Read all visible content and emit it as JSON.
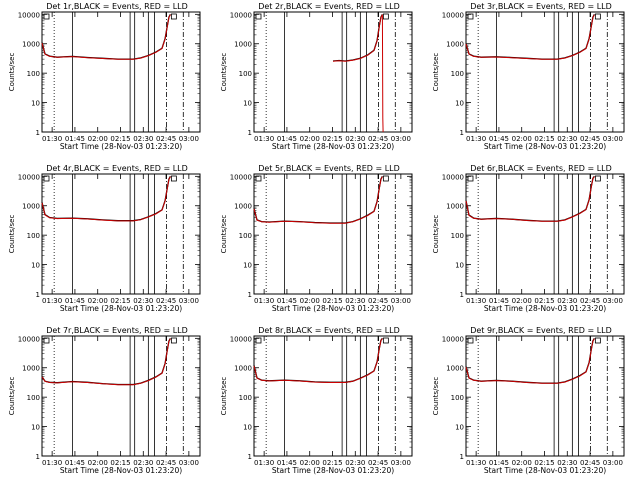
{
  "colors": {
    "events": "#000000",
    "lld": "#cc0000",
    "axis": "#000000"
  },
  "chart_data": [
    {
      "type": "line",
      "title": "Det 1r,BLACK = Events, RED = LLD",
      "xlabel": "Start Time (28-Nov-03 01:23:20)",
      "ylabel": "Counts/sec",
      "xticks": [
        "01:30",
        "01:45",
        "02:00",
        "02:15",
        "02:30",
        "02:45",
        "03:00"
      ],
      "yticks": [
        "1",
        "10",
        "100",
        "1000",
        "10000"
      ],
      "xlim_minutes": [
        0,
        104
      ],
      "ylim": [
        1,
        12000
      ],
      "yscale": "log",
      "grid": false,
      "dotted_lines_minutes": [
        8
      ],
      "solid_lines_minutes": [
        20,
        58,
        61,
        70,
        74
      ],
      "dashdot_lines_minutes": [
        82,
        93
      ],
      "series": [
        {
          "key": "events",
          "x_minutes": [
            0,
            2,
            5,
            10,
            20,
            30,
            40,
            50,
            60,
            65,
            70,
            75,
            79,
            81,
            82.5,
            83.5,
            84.5
          ],
          "values": [
            1100,
            450,
            380,
            350,
            370,
            340,
            320,
            300,
            300,
            330,
            400,
            520,
            700,
            1500,
            4000,
            8000,
            10000
          ]
        },
        {
          "key": "lld",
          "x_minutes": [
            0,
            2,
            5,
            10,
            20,
            30,
            40,
            50,
            60,
            65,
            70,
            75,
            79,
            81,
            82.5,
            83.5,
            84.5
          ],
          "values": [
            1050,
            440,
            370,
            345,
            365,
            335,
            315,
            295,
            295,
            325,
            395,
            510,
            690,
            1450,
            3900,
            7800,
            9800
          ]
        }
      ]
    },
    {
      "type": "line",
      "title": "Det 2r,BLACK = Events, RED = LLD",
      "xlabel": "Start Time (28-Nov-03 01:23:20)",
      "ylabel": "Counts/sec",
      "xticks": [
        "01:30",
        "01:45",
        "02:00",
        "02:15",
        "02:30",
        "02:45",
        "03:00"
      ],
      "yticks": [
        "1",
        "10",
        "100",
        "1000",
        "10000"
      ],
      "xlim_minutes": [
        0,
        104
      ],
      "ylim": [
        1,
        12000
      ],
      "yscale": "log",
      "grid": false,
      "dotted_lines_minutes": [
        8
      ],
      "solid_lines_minutes": [
        20,
        58,
        61,
        70,
        74
      ],
      "dashdot_lines_minutes": [
        82,
        93
      ],
      "series": [
        {
          "key": "events",
          "x_minutes": [
            52,
            56,
            60,
            65,
            70,
            75,
            79,
            81,
            82.5,
            83.5,
            84.5
          ],
          "values": [
            260,
            270,
            260,
            280,
            320,
            420,
            600,
            1300,
            4000,
            8000,
            10000
          ]
        },
        {
          "key": "lld",
          "x_minutes": [
            52,
            56,
            60,
            65,
            70,
            75,
            79,
            81,
            82.5,
            83.5,
            84.5,
            84.8,
            85
          ],
          "values": [
            255,
            265,
            255,
            275,
            315,
            410,
            590,
            1250,
            3900,
            7800,
            9800,
            3,
            1
          ]
        }
      ]
    },
    {
      "type": "line",
      "title": "Det 3r,BLACK = Events, RED = LLD",
      "xlabel": "Start Time (28-Nov-03 01:23:20)",
      "ylabel": "Counts/sec",
      "xticks": [
        "01:30",
        "01:45",
        "02:00",
        "02:15",
        "02:30",
        "02:45",
        "03:00"
      ],
      "yticks": [
        "1",
        "10",
        "100",
        "1000",
        "10000"
      ],
      "xlim_minutes": [
        0,
        104
      ],
      "ylim": [
        1,
        12000
      ],
      "yscale": "log",
      "grid": false,
      "dotted_lines_minutes": [
        8
      ],
      "solid_lines_minutes": [
        20,
        58,
        61,
        70,
        74
      ],
      "dashdot_lines_minutes": [
        82,
        93
      ],
      "series": [
        {
          "key": "events",
          "x_minutes": [
            0,
            2,
            5,
            10,
            20,
            30,
            40,
            50,
            60,
            65,
            70,
            75,
            79,
            81,
            82.5,
            83.5,
            84.5
          ],
          "values": [
            1000,
            450,
            380,
            350,
            360,
            340,
            320,
            300,
            300,
            330,
            400,
            520,
            700,
            1500,
            4000,
            8000,
            10000
          ]
        },
        {
          "key": "lld",
          "x_minutes": [
            0,
            2,
            5,
            10,
            20,
            30,
            40,
            50,
            60,
            65,
            70,
            75,
            79,
            81,
            82.5,
            83.5,
            84.5
          ],
          "values": [
            980,
            440,
            370,
            345,
            355,
            335,
            315,
            295,
            295,
            325,
            395,
            510,
            690,
            1450,
            3900,
            7800,
            9800
          ]
        }
      ]
    },
    {
      "type": "line",
      "title": "Det 4r,BLACK = Events, RED = LLD",
      "xlabel": "Start Time (28-Nov-03 01:23:20)",
      "ylabel": "Counts/sec",
      "xticks": [
        "01:30",
        "01:45",
        "02:00",
        "02:15",
        "02:30",
        "02:45",
        "03:00"
      ],
      "yticks": [
        "1",
        "10",
        "100",
        "1000",
        "10000"
      ],
      "xlim_minutes": [
        0,
        104
      ],
      "ylim": [
        1,
        12000
      ],
      "yscale": "log",
      "grid": false,
      "dotted_lines_minutes": [
        8
      ],
      "solid_lines_minutes": [
        20,
        58,
        61,
        70,
        74
      ],
      "dashdot_lines_minutes": [
        82,
        93
      ],
      "series": [
        {
          "key": "events",
          "x_minutes": [
            0,
            2,
            5,
            10,
            20,
            30,
            40,
            50,
            60,
            65,
            70,
            75,
            79,
            81,
            82.5,
            83.5,
            84.5
          ],
          "values": [
            1300,
            500,
            400,
            370,
            380,
            360,
            330,
            310,
            310,
            340,
            420,
            540,
            720,
            1500,
            4000,
            8000,
            10000
          ]
        },
        {
          "key": "lld",
          "x_minutes": [
            0,
            2,
            5,
            10,
            20,
            30,
            40,
            50,
            60,
            65,
            70,
            75,
            79,
            81,
            82.5,
            83.5,
            84.5
          ],
          "values": [
            1250,
            490,
            390,
            365,
            375,
            355,
            325,
            305,
            305,
            335,
            415,
            530,
            710,
            1450,
            3900,
            7800,
            9800
          ]
        }
      ]
    },
    {
      "type": "line",
      "title": "Det 5r,BLACK = Events, RED = LLD",
      "xlabel": "Start Time (28-Nov-03 01:23:20)",
      "ylabel": "Counts/sec",
      "xticks": [
        "01:30",
        "01:45",
        "02:00",
        "02:15",
        "02:30",
        "02:45",
        "03:00"
      ],
      "yticks": [
        "1",
        "10",
        "100",
        "1000",
        "10000"
      ],
      "xlim_minutes": [
        0,
        104
      ],
      "ylim": [
        1,
        12000
      ],
      "yscale": "log",
      "grid": false,
      "dotted_lines_minutes": [
        8
      ],
      "solid_lines_minutes": [
        20,
        58,
        61,
        70,
        74
      ],
      "dashdot_lines_minutes": [
        82,
        93
      ],
      "series": [
        {
          "key": "events",
          "x_minutes": [
            0,
            2,
            5,
            10,
            20,
            30,
            40,
            50,
            60,
            65,
            70,
            75,
            79,
            81,
            82.5,
            83.5,
            84.5
          ],
          "values": [
            800,
            330,
            290,
            280,
            300,
            290,
            270,
            260,
            260,
            290,
            360,
            480,
            650,
            1400,
            4000,
            8000,
            10000
          ]
        },
        {
          "key": "lld",
          "x_minutes": [
            0,
            2,
            5,
            10,
            20,
            30,
            40,
            50,
            60,
            65,
            70,
            75,
            79,
            81,
            82.5,
            83.5,
            84.5
          ],
          "values": [
            780,
            325,
            285,
            275,
            295,
            285,
            265,
            255,
            255,
            285,
            355,
            470,
            640,
            1350,
            3900,
            7800,
            9800
          ]
        }
      ]
    },
    {
      "type": "line",
      "title": "Det 6r,BLACK = Events, RED = LLD",
      "xlabel": "Start Time (28-Nov-03 01:23:20)",
      "ylabel": "Counts/sec",
      "xticks": [
        "01:30",
        "01:45",
        "02:00",
        "02:15",
        "02:30",
        "02:45",
        "03:00"
      ],
      "yticks": [
        "1",
        "10",
        "100",
        "1000",
        "10000"
      ],
      "xlim_minutes": [
        0,
        104
      ],
      "ylim": [
        1,
        12000
      ],
      "yscale": "log",
      "grid": false,
      "dotted_lines_minutes": [
        8
      ],
      "solid_lines_minutes": [
        20,
        58,
        61,
        70,
        74
      ],
      "dashdot_lines_minutes": [
        82,
        93
      ],
      "series": [
        {
          "key": "events",
          "x_minutes": [
            0,
            2,
            5,
            10,
            20,
            30,
            40,
            50,
            60,
            65,
            70,
            75,
            79,
            81,
            82.5,
            83.5,
            84.5
          ],
          "values": [
            1500,
            480,
            380,
            350,
            370,
            350,
            320,
            300,
            300,
            330,
            420,
            560,
            750,
            1600,
            4500,
            8500,
            10000
          ]
        },
        {
          "key": "lld",
          "x_minutes": [
            0,
            2,
            5,
            10,
            20,
            30,
            40,
            50,
            60,
            65,
            70,
            75,
            79,
            81,
            82.5,
            83.5,
            84.5
          ],
          "values": [
            1450,
            470,
            375,
            345,
            365,
            345,
            315,
            295,
            295,
            325,
            415,
            550,
            740,
            1550,
            4400,
            8300,
            9800
          ]
        }
      ]
    },
    {
      "type": "line",
      "title": "Det 7r,BLACK = Events, RED = LLD",
      "xlabel": "Start Time (28-Nov-03 01:23:20)",
      "ylabel": "Counts/sec",
      "xticks": [
        "01:30",
        "01:45",
        "02:00",
        "02:15",
        "02:30",
        "02:45",
        "03:00"
      ],
      "yticks": [
        "1",
        "10",
        "100",
        "1000",
        "10000"
      ],
      "xlim_minutes": [
        0,
        104
      ],
      "ylim": [
        1,
        12000
      ],
      "yscale": "log",
      "grid": false,
      "dotted_lines_minutes": [
        8
      ],
      "solid_lines_minutes": [
        20,
        58,
        61,
        70,
        74
      ],
      "dashdot_lines_minutes": [
        82,
        93
      ],
      "series": [
        {
          "key": "events",
          "x_minutes": [
            0,
            2,
            5,
            10,
            20,
            30,
            40,
            50,
            60,
            65,
            70,
            75,
            79,
            81,
            82.5,
            83.5,
            84.5
          ],
          "values": [
            500,
            350,
            320,
            310,
            340,
            320,
            290,
            270,
            270,
            300,
            370,
            490,
            660,
            1400,
            4000,
            8000,
            10000
          ]
        },
        {
          "key": "lld",
          "x_minutes": [
            0,
            2,
            5,
            10,
            20,
            30,
            40,
            50,
            60,
            65,
            70,
            75,
            79,
            81,
            82.5,
            83.5,
            84.5
          ],
          "values": [
            490,
            345,
            315,
            305,
            335,
            315,
            285,
            265,
            265,
            295,
            365,
            480,
            650,
            1350,
            3900,
            7800,
            9800
          ]
        }
      ]
    },
    {
      "type": "line",
      "title": "Det 8r,BLACK = Events, RED = LLD",
      "xlabel": "Start Time (28-Nov-03 01:23:20)",
      "ylabel": "Counts/sec",
      "xticks": [
        "01:30",
        "01:45",
        "02:00",
        "02:15",
        "02:30",
        "02:45",
        "03:00"
      ],
      "yticks": [
        "1",
        "10",
        "100",
        "1000",
        "10000"
      ],
      "xlim_minutes": [
        0,
        104
      ],
      "ylim": [
        1,
        12000
      ],
      "yscale": "log",
      "grid": false,
      "dotted_lines_minutes": [
        8
      ],
      "solid_lines_minutes": [
        20,
        58,
        61,
        70,
        74
      ],
      "dashdot_lines_minutes": [
        82,
        93
      ],
      "series": [
        {
          "key": "events",
          "x_minutes": [
            0,
            2,
            5,
            10,
            20,
            30,
            40,
            50,
            60,
            65,
            70,
            75,
            79,
            81,
            82.5,
            83.5,
            84.5
          ],
          "values": [
            1200,
            450,
            380,
            360,
            380,
            360,
            330,
            320,
            320,
            350,
            440,
            580,
            780,
            1600,
            4500,
            8500,
            10000
          ]
        },
        {
          "key": "lld",
          "x_minutes": [
            0,
            2,
            5,
            10,
            20,
            30,
            40,
            50,
            60,
            65,
            70,
            75,
            79,
            81,
            82.5,
            83.5,
            84.5
          ],
          "values": [
            1150,
            440,
            375,
            355,
            375,
            355,
            325,
            315,
            315,
            345,
            435,
            570,
            770,
            1550,
            4400,
            8300,
            9800
          ]
        }
      ]
    },
    {
      "type": "line",
      "title": "Det 9r,BLACK = Events, RED = LLD",
      "xlabel": "Start Time (28-Nov-03 01:23:20)",
      "ylabel": "Counts/sec",
      "xticks": [
        "01:30",
        "01:45",
        "02:00",
        "02:15",
        "02:30",
        "02:45",
        "03:00"
      ],
      "yticks": [
        "1",
        "10",
        "100",
        "1000",
        "10000"
      ],
      "xlim_minutes": [
        0,
        104
      ],
      "ylim": [
        1,
        12000
      ],
      "yscale": "log",
      "grid": false,
      "dotted_lines_minutes": [
        8
      ],
      "solid_lines_minutes": [
        20,
        58,
        61,
        70,
        74
      ],
      "dashdot_lines_minutes": [
        82,
        93
      ],
      "series": [
        {
          "key": "events",
          "x_minutes": [
            0,
            2,
            5,
            10,
            20,
            30,
            40,
            50,
            60,
            65,
            70,
            75,
            79,
            81,
            82.5,
            83.5,
            84.5
          ],
          "values": [
            1100,
            450,
            380,
            350,
            370,
            350,
            320,
            300,
            300,
            330,
            410,
            540,
            730,
            1500,
            4200,
            8200,
            10000
          ]
        },
        {
          "key": "lld",
          "x_minutes": [
            0,
            2,
            5,
            10,
            20,
            30,
            40,
            50,
            60,
            65,
            70,
            75,
            79,
            81,
            82.5,
            83.5,
            84.5
          ],
          "values": [
            1050,
            440,
            375,
            345,
            365,
            345,
            315,
            295,
            295,
            325,
            405,
            530,
            720,
            1450,
            4100,
            8000,
            9800
          ]
        }
      ]
    }
  ]
}
